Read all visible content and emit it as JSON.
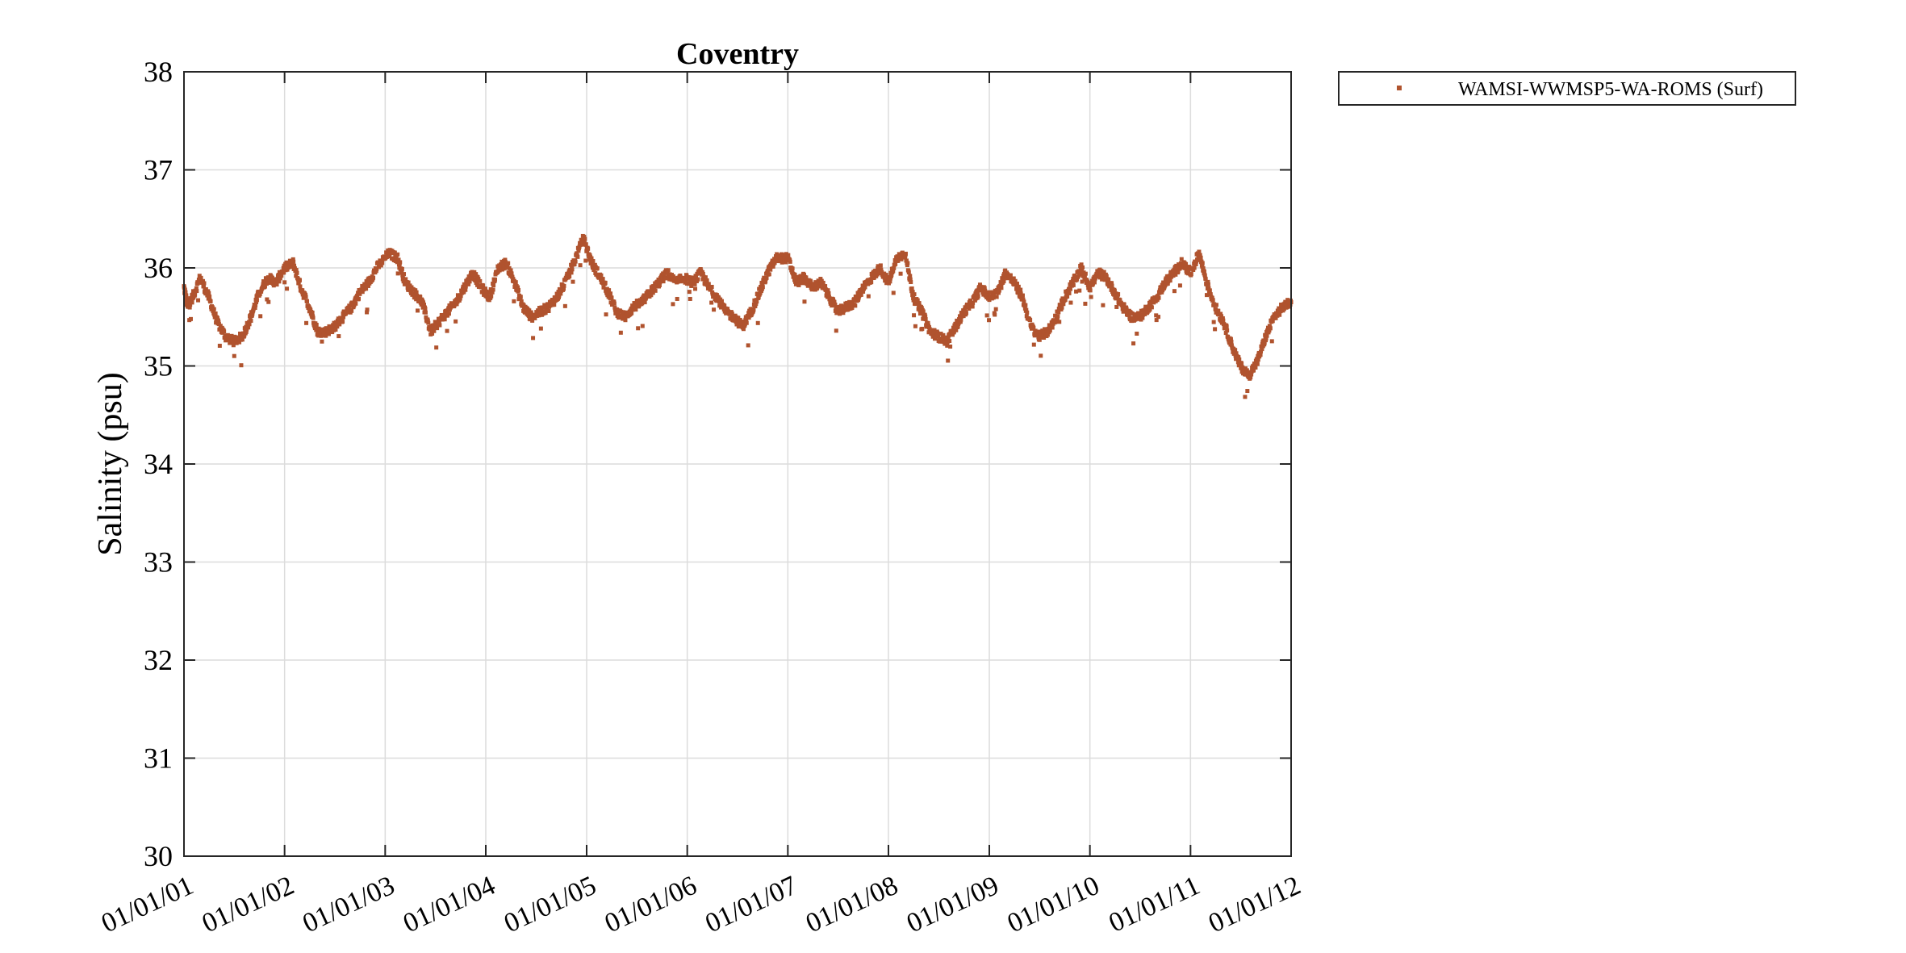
{
  "chart_data": {
    "type": "scatter",
    "title": "Coventry",
    "xlabel": "",
    "ylabel": "Salinity (psu)",
    "ylim": [
      30,
      38
    ],
    "yticks": [
      30,
      31,
      32,
      33,
      34,
      35,
      36,
      37,
      38
    ],
    "xlim": [
      "2001-01-01",
      "2012-01-01"
    ],
    "xtick_labels": [
      "01/01/01",
      "01/01/02",
      "01/01/03",
      "01/01/04",
      "01/01/05",
      "01/01/06",
      "01/01/07",
      "01/01/08",
      "01/01/09",
      "01/01/10",
      "01/01/11",
      "01/01/12"
    ],
    "grid": true,
    "legend_position": "outside-top-right",
    "series": [
      {
        "name": "WAMSI-WWMSP5-WA-ROMS (Surf)",
        "color": "#b0532e",
        "marker": "square",
        "points": [
          [
            "2001-01-01",
            35.8
          ],
          [
            "2001-01-15",
            35.6
          ],
          [
            "2001-02-01",
            35.7
          ],
          [
            "2001-03-01",
            35.9
          ],
          [
            "2001-04-01",
            35.7
          ],
          [
            "2001-05-01",
            35.45
          ],
          [
            "2001-06-01",
            35.3
          ],
          [
            "2001-07-01",
            35.25
          ],
          [
            "2001-08-01",
            35.3
          ],
          [
            "2001-09-01",
            35.5
          ],
          [
            "2001-10-01",
            35.75
          ],
          [
            "2001-11-01",
            35.9
          ],
          [
            "2001-12-01",
            35.85
          ],
          [
            "2002-01-01",
            36.0
          ],
          [
            "2002-02-01",
            36.05
          ],
          [
            "2002-03-01",
            35.8
          ],
          [
            "2002-04-01",
            35.6
          ],
          [
            "2002-05-01",
            35.35
          ],
          [
            "2002-06-01",
            35.35
          ],
          [
            "2002-07-01",
            35.4
          ],
          [
            "2002-08-01",
            35.5
          ],
          [
            "2002-09-01",
            35.6
          ],
          [
            "2002-10-01",
            35.75
          ],
          [
            "2002-11-01",
            35.85
          ],
          [
            "2002-12-01",
            36.0
          ],
          [
            "2003-01-15",
            36.15
          ],
          [
            "2003-02-15",
            36.1
          ],
          [
            "2003-03-15",
            35.85
          ],
          [
            "2003-04-15",
            35.75
          ],
          [
            "2003-05-15",
            35.65
          ],
          [
            "2003-06-15",
            35.35
          ],
          [
            "2003-07-15",
            35.45
          ],
          [
            "2003-08-15",
            35.55
          ],
          [
            "2003-09-15",
            35.65
          ],
          [
            "2003-10-15",
            35.8
          ],
          [
            "2003-11-15",
            35.95
          ],
          [
            "2003-12-15",
            35.8
          ],
          [
            "2004-01-15",
            35.7
          ],
          [
            "2004-02-15",
            36.0
          ],
          [
            "2004-03-15",
            36.05
          ],
          [
            "2004-04-15",
            35.85
          ],
          [
            "2004-05-15",
            35.6
          ],
          [
            "2004-06-15",
            35.5
          ],
          [
            "2004-07-15",
            35.55
          ],
          [
            "2004-08-15",
            35.6
          ],
          [
            "2004-09-15",
            35.7
          ],
          [
            "2004-10-15",
            35.85
          ],
          [
            "2004-11-15",
            36.05
          ],
          [
            "2004-12-20",
            36.3
          ],
          [
            "2005-01-20",
            36.05
          ],
          [
            "2005-02-20",
            35.9
          ],
          [
            "2005-03-20",
            35.75
          ],
          [
            "2005-04-20",
            35.55
          ],
          [
            "2005-05-20",
            35.5
          ],
          [
            "2005-06-20",
            35.6
          ],
          [
            "2005-07-20",
            35.65
          ],
          [
            "2005-08-20",
            35.75
          ],
          [
            "2005-09-20",
            35.85
          ],
          [
            "2005-10-20",
            35.95
          ],
          [
            "2005-11-20",
            35.85
          ],
          [
            "2005-12-20",
            35.9
          ],
          [
            "2006-01-20",
            35.85
          ],
          [
            "2006-02-20",
            35.95
          ],
          [
            "2006-03-20",
            35.8
          ],
          [
            "2006-04-20",
            35.7
          ],
          [
            "2006-05-20",
            35.55
          ],
          [
            "2006-06-20",
            35.5
          ],
          [
            "2006-07-20",
            35.4
          ],
          [
            "2006-08-20",
            35.55
          ],
          [
            "2006-09-20",
            35.75
          ],
          [
            "2006-10-20",
            35.95
          ],
          [
            "2006-11-20",
            36.1
          ],
          [
            "2007-01-01",
            36.1
          ],
          [
            "2007-02-01",
            35.85
          ],
          [
            "2007-03-01",
            35.9
          ],
          [
            "2007-04-01",
            35.8
          ],
          [
            "2007-05-01",
            35.85
          ],
          [
            "2007-06-01",
            35.7
          ],
          [
            "2007-07-01",
            35.55
          ],
          [
            "2007-08-01",
            35.6
          ],
          [
            "2007-09-01",
            35.65
          ],
          [
            "2007-10-01",
            35.8
          ],
          [
            "2007-11-01",
            35.9
          ],
          [
            "2007-12-01",
            36.0
          ],
          [
            "2008-01-01",
            35.85
          ],
          [
            "2008-02-01",
            36.1
          ],
          [
            "2008-03-01",
            36.15
          ],
          [
            "2008-04-01",
            35.7
          ],
          [
            "2008-05-01",
            35.55
          ],
          [
            "2008-06-01",
            35.35
          ],
          [
            "2008-07-01",
            35.3
          ],
          [
            "2008-08-01",
            35.25
          ],
          [
            "2008-09-01",
            35.4
          ],
          [
            "2008-10-01",
            35.55
          ],
          [
            "2008-11-01",
            35.65
          ],
          [
            "2008-12-01",
            35.8
          ],
          [
            "2009-01-01",
            35.7
          ],
          [
            "2009-02-01",
            35.75
          ],
          [
            "2009-03-01",
            35.95
          ],
          [
            "2009-04-01",
            35.85
          ],
          [
            "2009-05-01",
            35.7
          ],
          [
            "2009-06-01",
            35.4
          ],
          [
            "2009-07-01",
            35.3
          ],
          [
            "2009-08-01",
            35.35
          ],
          [
            "2009-09-01",
            35.5
          ],
          [
            "2009-10-01",
            35.7
          ],
          [
            "2009-11-01",
            35.85
          ],
          [
            "2009-12-01",
            36.0
          ],
          [
            "2010-01-01",
            35.8
          ],
          [
            "2010-02-01",
            35.95
          ],
          [
            "2010-03-01",
            35.9
          ],
          [
            "2010-04-01",
            35.75
          ],
          [
            "2010-05-01",
            35.6
          ],
          [
            "2010-06-01",
            35.5
          ],
          [
            "2010-07-01",
            35.5
          ],
          [
            "2010-08-01",
            35.6
          ],
          [
            "2010-09-01",
            35.7
          ],
          [
            "2010-10-01",
            35.85
          ],
          [
            "2010-11-01",
            35.95
          ],
          [
            "2010-12-01",
            36.05
          ],
          [
            "2011-01-01",
            35.95
          ],
          [
            "2011-02-01",
            36.15
          ],
          [
            "2011-03-01",
            35.85
          ],
          [
            "2011-04-01",
            35.6
          ],
          [
            "2011-05-01",
            35.45
          ],
          [
            "2011-06-01",
            35.2
          ],
          [
            "2011-07-01",
            35.0
          ],
          [
            "2011-08-01",
            34.9
          ],
          [
            "2011-09-01",
            35.05
          ],
          [
            "2011-10-01",
            35.3
          ],
          [
            "2011-11-01",
            35.5
          ],
          [
            "2011-12-01",
            35.6
          ],
          [
            "2012-01-01",
            35.65
          ]
        ]
      }
    ]
  }
}
